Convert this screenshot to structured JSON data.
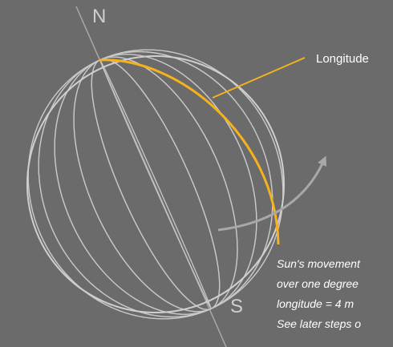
{
  "labels": {
    "north": "N",
    "south": "S",
    "longitude": "Longitude"
  },
  "note": [
    "Sun's movement",
    "over one degree",
    "longitude = 4 m",
    "See later steps o"
  ]
}
